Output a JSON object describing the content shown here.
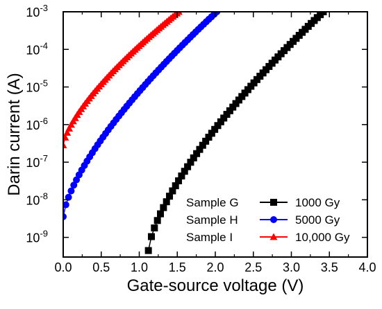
{
  "chart_data": {
    "type": "line",
    "title": "",
    "xlabel": "Gate-source voltage (V)",
    "ylabel": "Darin current (A)",
    "yscale": "log",
    "xlim": [
      0.0,
      4.0
    ],
    "ylim": [
      3e-10,
      0.001
    ],
    "grid": false,
    "legend_position": "bottom-right",
    "x_ticks": [
      "0.0",
      "0.5",
      "1.0",
      "1.5",
      "2.0",
      "2.5",
      "3.0",
      "3.5",
      "4.0"
    ],
    "y_ticks": [
      {
        "value": 1e-09,
        "base": "10",
        "exp": "-9"
      },
      {
        "value": 1e-08,
        "base": "10",
        "exp": "-8"
      },
      {
        "value": 1e-07,
        "base": "10",
        "exp": "-7"
      },
      {
        "value": 1e-06,
        "base": "10",
        "exp": "-6"
      },
      {
        "value": 1e-05,
        "base": "10",
        "exp": "-5"
      },
      {
        "value": 0.0001,
        "base": "10",
        "exp": "-4"
      },
      {
        "value": 0.001,
        "base": "10",
        "exp": "-3"
      }
    ],
    "series": [
      {
        "name": "1000 Gy",
        "sample": "Sample G",
        "color": "#000000",
        "marker": "square",
        "x_start": 1.12,
        "x_end": 3.42,
        "log_y_start": -9.35,
        "log_y_end": -3.0
      },
      {
        "name": "5000 Gy",
        "sample": "Sample H",
        "color": "#0000ff",
        "marker": "circle",
        "x_start": 0.0,
        "x_end": 2.02,
        "log_y_start": -8.45,
        "log_y_end": -3.0
      },
      {
        "name": "10,000 Gy",
        "sample": "Sample I",
        "color": "#ff0000",
        "marker": "triangle",
        "x_start": 0.0,
        "x_end": 1.52,
        "log_y_start": -6.55,
        "log_y_end": -3.0
      }
    ]
  }
}
